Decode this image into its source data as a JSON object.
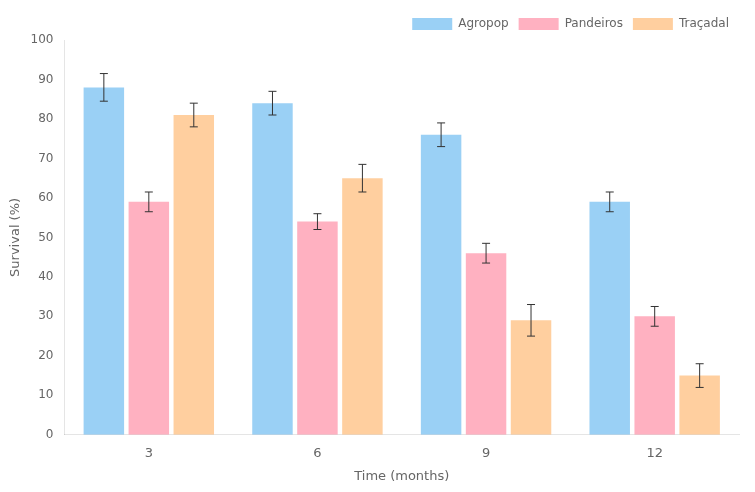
{
  "chart_data": {
    "type": "bar",
    "categories": [
      "3",
      "6",
      "9",
      "12"
    ],
    "series": [
      {
        "name": "Agropop",
        "values": [
          88,
          84,
          76,
          59
        ],
        "errors": [
          3.5,
          3.0,
          3.0,
          2.5
        ]
      },
      {
        "name": "Pandeiros",
        "values": [
          59,
          54,
          46,
          30
        ],
        "errors": [
          2.5,
          2.0,
          2.5,
          2.5
        ]
      },
      {
        "name": "Traçadal",
        "values": [
          81,
          65,
          29,
          15
        ],
        "errors": [
          3.0,
          3.5,
          4.0,
          3.0
        ]
      }
    ],
    "xlabel": "Time (months)",
    "ylabel": "Survival (%)",
    "ylim": [
      0,
      100
    ],
    "yticks": [
      0,
      10,
      20,
      30,
      40,
      50,
      60,
      70,
      80,
      90,
      100
    ],
    "grid": false,
    "legend": "upper right"
  }
}
